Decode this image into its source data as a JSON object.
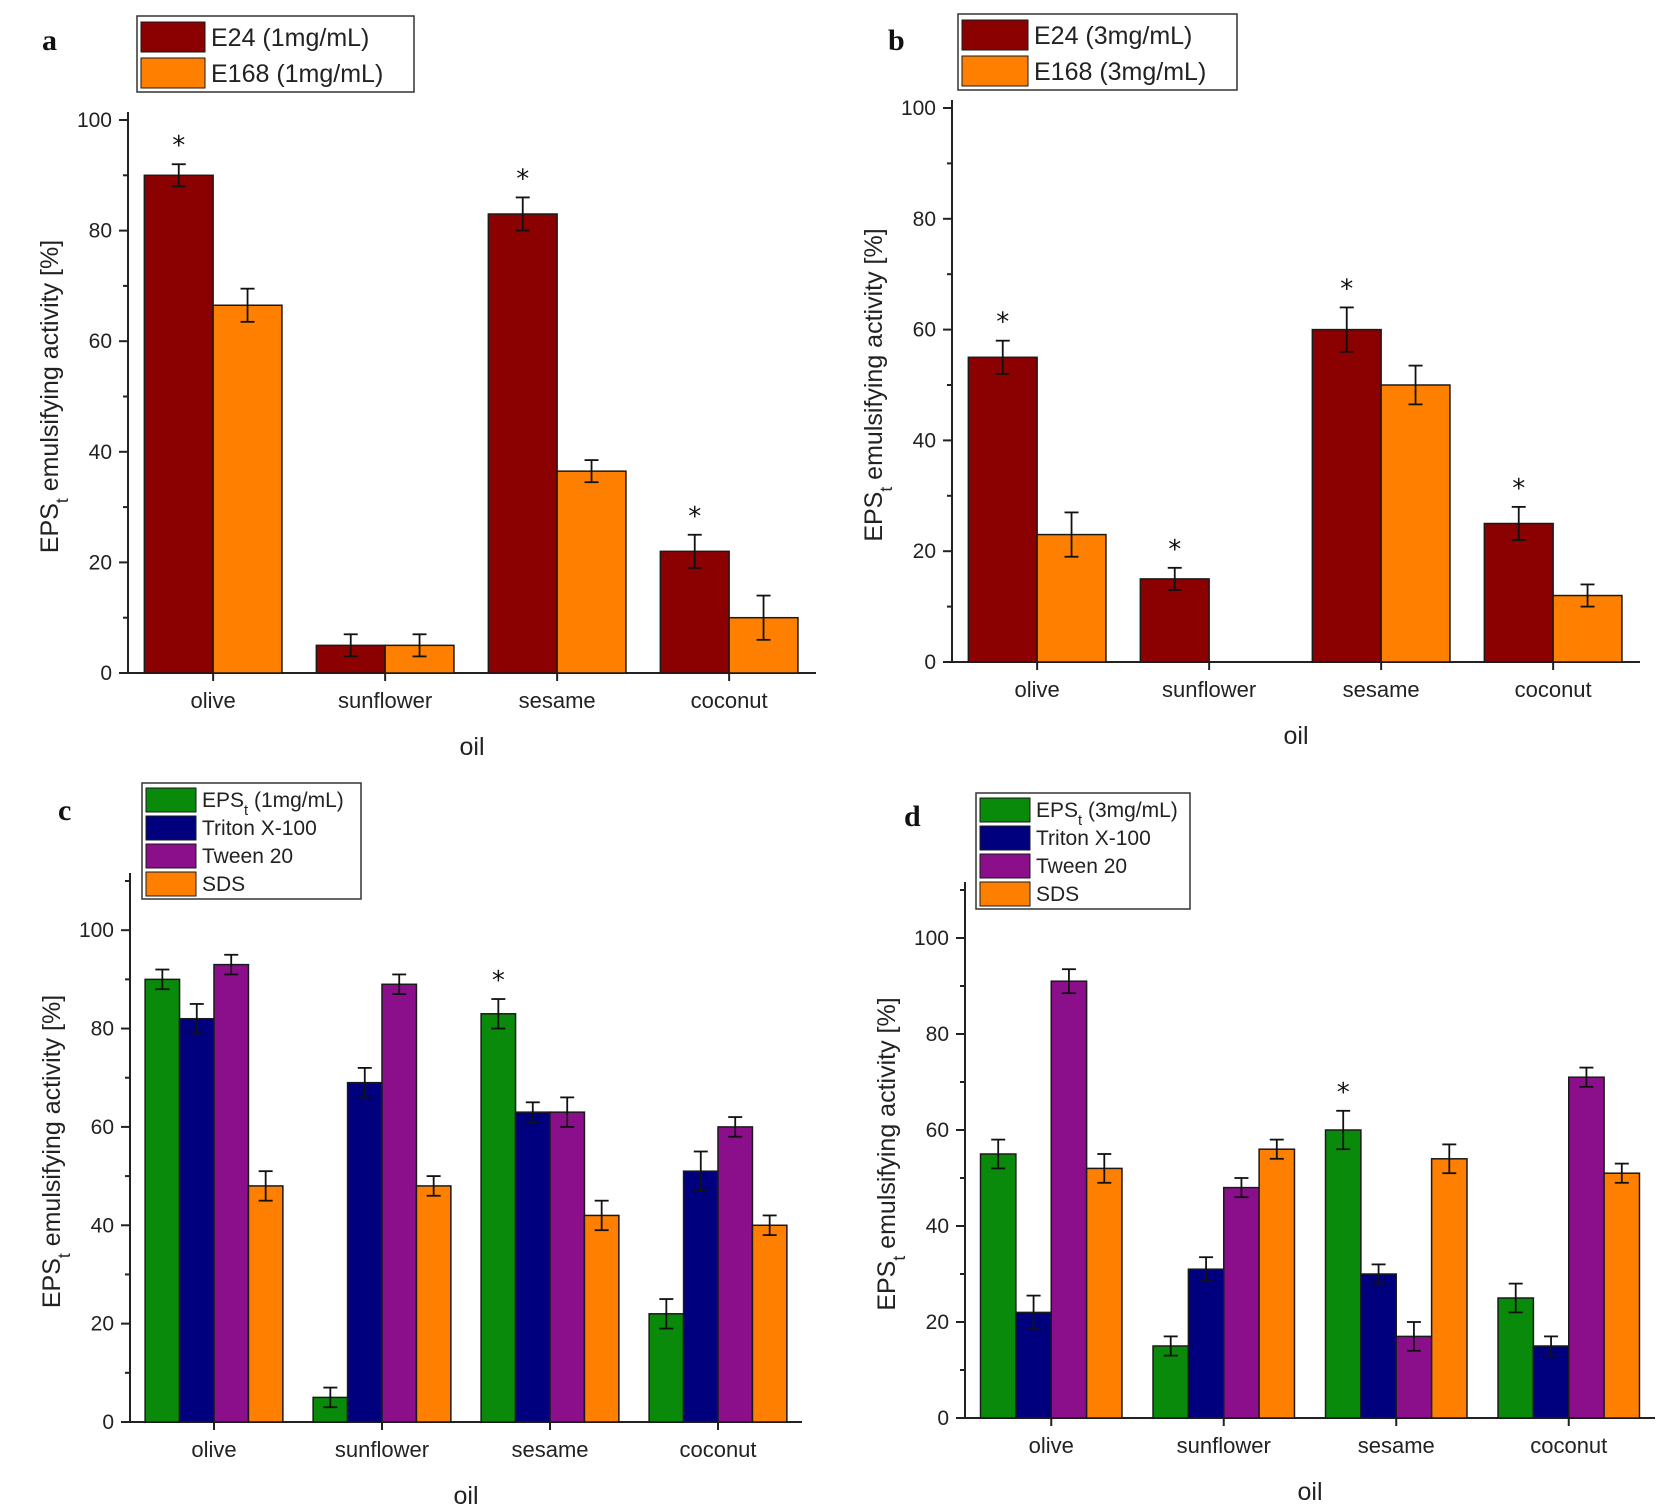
{
  "colors": {
    "dark_red": "#8b0000",
    "orange": "#ff8000",
    "green": "#0a8a0a",
    "navy": "#00007f",
    "purple": "#8b0f8b",
    "axis": "#222222"
  },
  "chart_data": [
    {
      "panel": "a",
      "type": "bar",
      "title": "",
      "xlabel": "oil",
      "ylabel": "EPS",
      "ylabel_sub": "t",
      "ylabel_rest": " emulsifying activity [%]",
      "ylim": [
        0,
        100
      ],
      "yticks": [
        0,
        20,
        40,
        60,
        80,
        100
      ],
      "categories": [
        "olive",
        "sunflower",
        "sesame",
        "coconut"
      ],
      "series": [
        {
          "name": "E24 (1mg/mL)",
          "color": "#8b0000",
          "values": [
            90,
            5,
            83,
            22
          ],
          "errors": [
            2,
            2,
            3,
            3
          ]
        },
        {
          "name": "E168 (1mg/mL)",
          "color": "#ff8000",
          "values": [
            66.5,
            5,
            36.5,
            10
          ],
          "errors": [
            3,
            2,
            2,
            4
          ]
        }
      ],
      "stars": [
        {
          "series": 0,
          "category": 0,
          "text": "*"
        },
        {
          "series": 0,
          "category": 2,
          "text": "*"
        },
        {
          "series": 0,
          "category": 3,
          "text": "*"
        }
      ],
      "legend": "top-left"
    },
    {
      "panel": "b",
      "type": "bar",
      "title": "",
      "xlabel": "oil",
      "ylabel": "EPS",
      "ylabel_sub": "t",
      "ylabel_rest": " emulsifying activity [%]",
      "ylim": [
        0,
        100
      ],
      "yticks": [
        0,
        20,
        40,
        60,
        80,
        100
      ],
      "categories": [
        "olive",
        "sunflower",
        "sesame",
        "coconut"
      ],
      "series": [
        {
          "name": "E24 (3mg/mL)",
          "color": "#8b0000",
          "values": [
            55,
            15,
            60,
            25
          ],
          "errors": [
            3,
            2,
            4,
            3
          ]
        },
        {
          "name": "E168 (3mg/mL)",
          "color": "#ff8000",
          "values": [
            23,
            0,
            50,
            12
          ],
          "errors": [
            4,
            0,
            3.5,
            2
          ]
        }
      ],
      "stars": [
        {
          "series": 0,
          "category": 0,
          "text": "*"
        },
        {
          "series": 0,
          "category": 1,
          "text": "*"
        },
        {
          "series": 0,
          "category": 2,
          "text": "*"
        },
        {
          "series": 0,
          "category": 3,
          "text": "*"
        }
      ],
      "legend": "top-left"
    },
    {
      "panel": "c",
      "type": "bar",
      "title": "",
      "xlabel": "oil",
      "ylabel": "EPS",
      "ylabel_sub": "t",
      "ylabel_rest": " emulsifying activity [%]",
      "ylim": [
        0,
        110
      ],
      "yticks": [
        0,
        20,
        40,
        60,
        80,
        100
      ],
      "categories": [
        "olive",
        "sunflower",
        "sesame",
        "coconut"
      ],
      "series": [
        {
          "name": "EPS",
          "name_sub": "t",
          "name_rest": " (1mg/mL)",
          "color": "#0a8a0a",
          "values": [
            90,
            5,
            83,
            22
          ],
          "errors": [
            2,
            2,
            3,
            3
          ]
        },
        {
          "name": "Triton X-100",
          "color": "#00007f",
          "values": [
            82,
            69,
            63,
            51
          ],
          "errors": [
            3,
            3,
            2,
            4
          ]
        },
        {
          "name": "Tween 20",
          "color": "#8b0f8b",
          "values": [
            93,
            89,
            63,
            60
          ],
          "errors": [
            2,
            2,
            3,
            2
          ]
        },
        {
          "name": "SDS",
          "color": "#ff8000",
          "values": [
            48,
            48,
            42,
            40
          ],
          "errors": [
            3,
            2,
            3,
            2
          ]
        }
      ],
      "stars": [
        {
          "series": 0,
          "category": 2,
          "text": "*"
        }
      ],
      "legend": "top-left"
    },
    {
      "panel": "d",
      "type": "bar",
      "title": "",
      "xlabel": "oil",
      "ylabel": "EPS",
      "ylabel_sub": "t",
      "ylabel_rest": " emulsifying activity [%]",
      "ylim": [
        0,
        110
      ],
      "yticks": [
        0,
        20,
        40,
        60,
        80,
        100
      ],
      "categories": [
        "olive",
        "sunflower",
        "sesame",
        "coconut"
      ],
      "series": [
        {
          "name": "EPS",
          "name_sub": "t",
          "name_rest": " (3mg/mL)",
          "color": "#0a8a0a",
          "values": [
            55,
            15,
            60,
            25
          ],
          "errors": [
            3,
            2,
            4,
            3
          ]
        },
        {
          "name": "Triton X-100",
          "color": "#00007f",
          "values": [
            22,
            31,
            30,
            15
          ],
          "errors": [
            3.5,
            2.5,
            2,
            2
          ]
        },
        {
          "name": "Tween 20",
          "color": "#8b0f8b",
          "values": [
            91,
            48,
            17,
            71
          ],
          "errors": [
            2.5,
            2,
            3,
            2
          ]
        },
        {
          "name": "SDS",
          "color": "#ff8000",
          "values": [
            52,
            56,
            54,
            51
          ],
          "errors": [
            3,
            2,
            3,
            2
          ]
        }
      ],
      "stars": [
        {
          "series": 0,
          "category": 2,
          "text": "*"
        }
      ],
      "legend": "top-left"
    }
  ]
}
